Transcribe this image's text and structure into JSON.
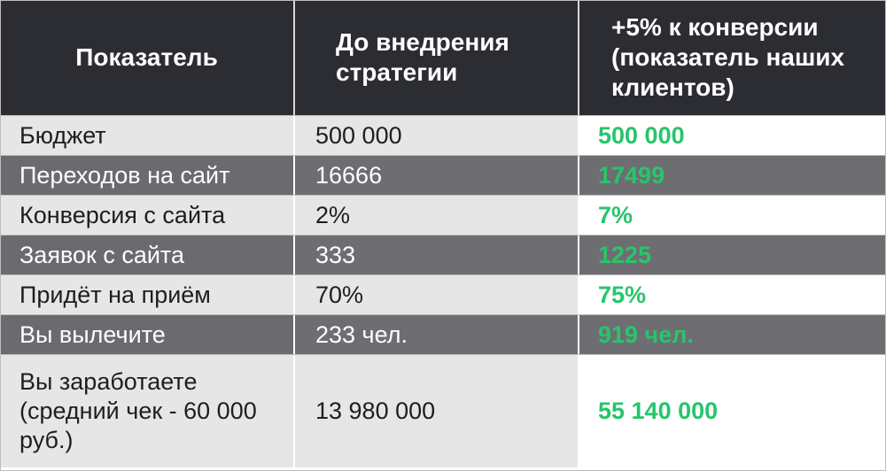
{
  "table": {
    "headers": [
      "Показатель",
      "До внедрения стратегии",
      "+5% к конверсии (показатель наших клиентов)"
    ],
    "rows": [
      {
        "label": "Бюджет",
        "before": "500 000",
        "after": "500 000"
      },
      {
        "label": "Переходов на сайт",
        "before": "16666",
        "after": "17499"
      },
      {
        "label": "Конверсия с сайта",
        "before": "2%",
        "after": "7%"
      },
      {
        "label": "Заявок с сайта",
        "before": "333",
        "after": "1225"
      },
      {
        "label": "Придёт на приём",
        "before": "70%",
        "after": "75%"
      },
      {
        "label": "Вы вылечите",
        "before": "233 чел.",
        "after": "919 чел."
      },
      {
        "label": "Вы заработаете (средний чек - 60 000 руб.)",
        "before": "13 980 000",
        "after": "55 140 000"
      }
    ]
  },
  "colors": {
    "header_bg": "#2c2d33",
    "dark_row_bg": "#6e6e72",
    "light_row_bg": "#e6e6e6",
    "accent_green": "#27c56a"
  }
}
